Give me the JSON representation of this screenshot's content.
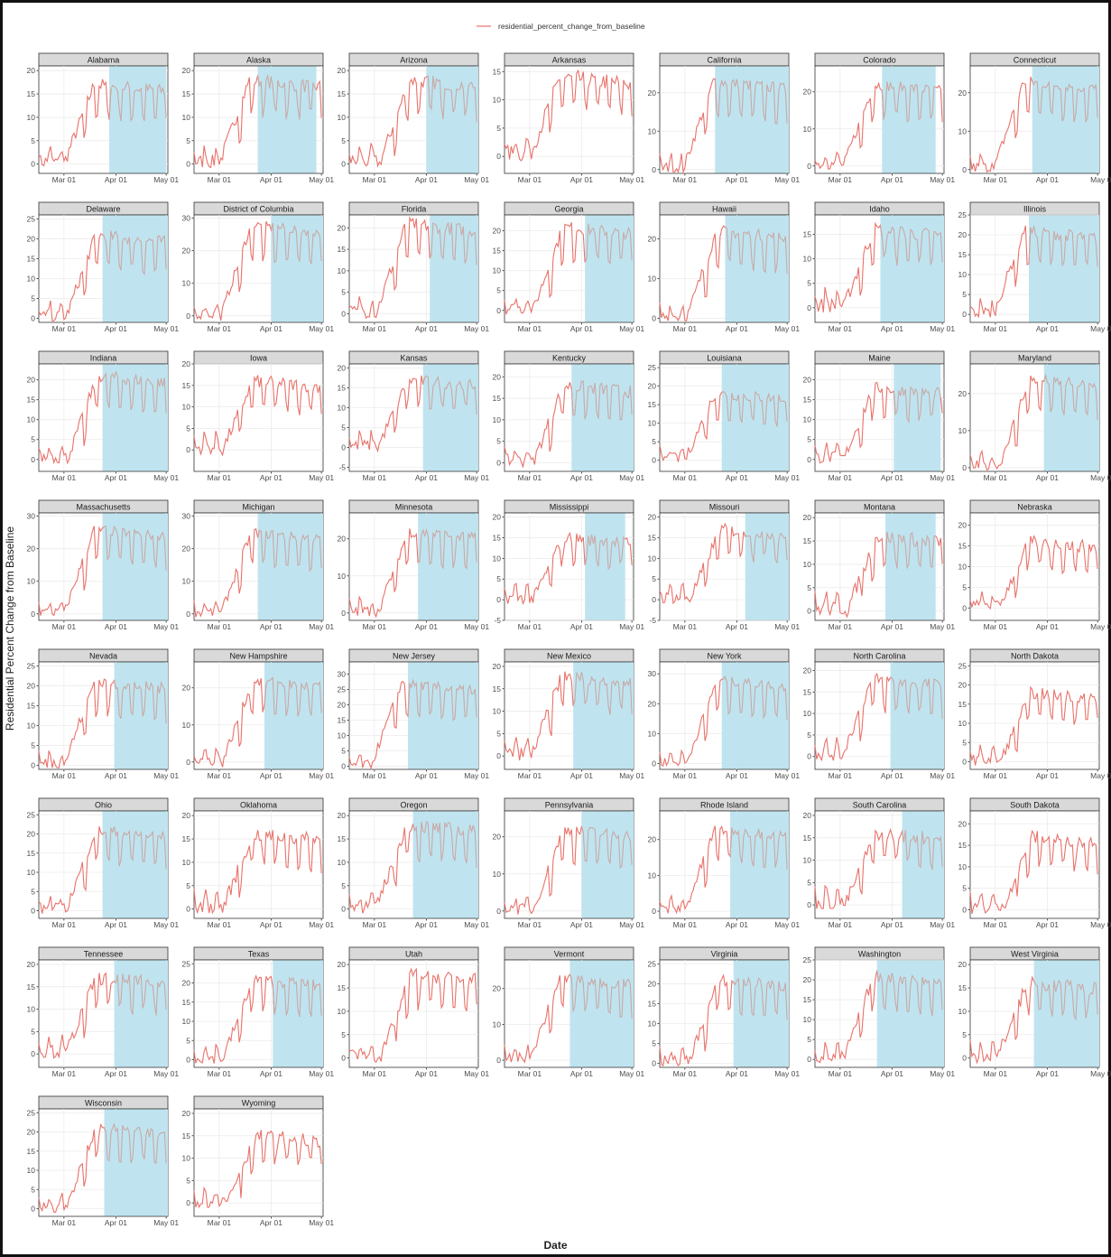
{
  "chart_data": {
    "type": "line",
    "title": "",
    "xlabel": "Date",
    "ylabel": "Residential Percent Change from Baseline",
    "legend": {
      "position": "top",
      "entries": [
        {
          "name": "residential_percent_change_from_baseline",
          "color": "#e8726a"
        }
      ]
    },
    "x_range": [
      "2020-02-15",
      "2020-05-02"
    ],
    "x_ticks": [
      "Mar 01",
      "Apr 01",
      "May 01"
    ],
    "grid": true,
    "colors": {
      "line": "#e8726a",
      "line_in_shade": "#c9a9a5",
      "shade": "#bfe4f0",
      "strip": "#d9d9d9",
      "grid": "#ebebeb",
      "axis_text": "#4d4d4d"
    },
    "series_note": "",
    "panels": [
      {
        "state": "Alabama",
        "ticks": [
          0,
          5,
          10,
          15,
          20
        ],
        "ylim": [
          -2,
          21
        ],
        "shade": [
          "2020-03-28",
          "2020-05-01"
        ],
        "onset": 16,
        "peak": 17
      },
      {
        "state": "Alaska",
        "ticks": [
          0,
          5,
          10,
          15,
          20
        ],
        "ylim": [
          -2,
          21
        ],
        "shade": [
          "2020-03-24",
          "2020-04-28"
        ],
        "onset": 15,
        "peak": 18
      },
      {
        "state": "Arizona",
        "ticks": [
          0,
          5,
          10,
          15,
          20
        ],
        "ylim": [
          -2,
          21
        ],
        "shade": [
          "2020-04-01",
          "2020-05-02"
        ],
        "onset": 17,
        "peak": 18
      },
      {
        "state": "Arkansas",
        "ticks": [
          0,
          5,
          10,
          15
        ],
        "ylim": [
          -3,
          16
        ],
        "shade": null,
        "onset": 16,
        "peak": 14
      },
      {
        "state": "California",
        "ticks": [
          0,
          10,
          20
        ],
        "ylim": [
          -1,
          27
        ],
        "shade": [
          "2020-03-19",
          "2020-05-02"
        ],
        "onset": 14,
        "peak": 23
      },
      {
        "state": "Colorado",
        "ticks": [
          0,
          10,
          20
        ],
        "ylim": [
          -2,
          27
        ],
        "shade": [
          "2020-03-26",
          "2020-04-27"
        ],
        "onset": 16,
        "peak": 22
      },
      {
        "state": "Connecticut",
        "ticks": [
          0,
          10,
          20
        ],
        "ylim": [
          -1,
          27
        ],
        "shade": [
          "2020-03-23",
          "2020-05-02"
        ],
        "onset": 15,
        "peak": 23
      },
      {
        "state": "Delaware",
        "ticks": [
          0,
          5,
          10,
          15,
          20,
          25
        ],
        "ylim": [
          -1,
          26
        ],
        "shade": [
          "2020-03-24",
          "2020-05-02"
        ],
        "onset": 16,
        "peak": 21
      },
      {
        "state": "District of Columbia",
        "ticks": [
          0,
          10,
          20,
          30
        ],
        "ylim": [
          -2,
          31
        ],
        "shade": [
          "2020-04-01",
          "2020-05-02"
        ],
        "onset": 15,
        "peak": 28
      },
      {
        "state": "Florida",
        "ticks": [
          0,
          5,
          10,
          15,
          20
        ],
        "ylim": [
          -2,
          23
        ],
        "shade": [
          "2020-04-03",
          "2020-05-02"
        ],
        "onset": 17,
        "peak": 21
      },
      {
        "state": "Georgia",
        "ticks": [
          0,
          5,
          10,
          15,
          20
        ],
        "ylim": [
          -3,
          24
        ],
        "shade": [
          "2020-04-03",
          "2020-05-02"
        ],
        "onset": 17,
        "peak": 21
      },
      {
        "state": "Hawaii",
        "ticks": [
          0,
          10,
          20
        ],
        "ylim": [
          -1,
          26
        ],
        "shade": [
          "2020-03-25",
          "2020-05-02"
        ],
        "onset": 15,
        "peak": 22
      },
      {
        "state": "Idaho",
        "ticks": [
          0,
          5,
          10,
          15
        ],
        "ylim": [
          -3,
          19
        ],
        "shade": [
          "2020-03-25",
          "2020-05-02"
        ],
        "onset": 18,
        "peak": 16
      },
      {
        "state": "Illinois",
        "ticks": [
          0,
          5,
          10,
          15,
          20,
          25
        ],
        "ylim": [
          -2,
          25
        ],
        "shade": [
          "2020-03-21",
          "2020-05-02"
        ],
        "onset": 14,
        "peak": 21
      },
      {
        "state": "Indiana",
        "ticks": [
          0,
          5,
          10,
          15,
          20
        ],
        "ylim": [
          -3,
          24
        ],
        "shade": [
          "2020-03-24",
          "2020-05-02"
        ],
        "onset": 16,
        "peak": 21
      },
      {
        "state": "Iowa",
        "ticks": [
          0,
          5,
          10,
          15,
          20
        ],
        "ylim": [
          -5,
          20
        ],
        "shade": null,
        "onset": 18,
        "peak": 16
      },
      {
        "state": "Kansas",
        "ticks": [
          -5,
          0,
          5,
          10,
          15,
          20
        ],
        "ylim": [
          -6,
          21
        ],
        "shade": [
          "2020-03-30",
          "2020-05-02"
        ],
        "onset": 17,
        "peak": 17
      },
      {
        "state": "Kentucky",
        "ticks": [
          0,
          5,
          10,
          15,
          20
        ],
        "ylim": [
          -2,
          23
        ],
        "shade": [
          "2020-03-26",
          "2020-05-02"
        ],
        "onset": 16,
        "peak": 18
      },
      {
        "state": "Louisiana",
        "ticks": [
          0,
          5,
          10,
          15,
          20,
          25
        ],
        "ylim": [
          -3,
          26
        ],
        "shade": [
          "2020-03-23",
          "2020-05-02"
        ],
        "onset": 16,
        "peak": 18
      },
      {
        "state": "Maine",
        "ticks": [
          0,
          5,
          10,
          15,
          20
        ],
        "ylim": [
          -3,
          24
        ],
        "shade": [
          "2020-04-02",
          "2020-04-30"
        ],
        "onset": 17,
        "peak": 18
      },
      {
        "state": "Maryland",
        "ticks": [
          0,
          10,
          20
        ],
        "ylim": [
          -1,
          28
        ],
        "shade": [
          "2020-03-30",
          "2020-05-02"
        ],
        "onset": 16,
        "peak": 24
      },
      {
        "state": "Massachusetts",
        "ticks": [
          0,
          10,
          20,
          30
        ],
        "ylim": [
          -2,
          31
        ],
        "shade": [
          "2020-03-24",
          "2020-05-02"
        ],
        "onset": 16,
        "peak": 26
      },
      {
        "state": "Michigan",
        "ticks": [
          0,
          10,
          20,
          30
        ],
        "ylim": [
          -2,
          31
        ],
        "shade": [
          "2020-03-24",
          "2020-05-02"
        ],
        "onset": 16,
        "peak": 25
      },
      {
        "state": "Minnesota",
        "ticks": [
          0,
          10,
          20
        ],
        "ylim": [
          -2,
          27
        ],
        "shade": [
          "2020-03-27",
          "2020-05-02"
        ],
        "onset": 16,
        "peak": 22
      },
      {
        "state": "Mississippi",
        "ticks": [
          -5,
          0,
          5,
          10,
          15,
          20
        ],
        "ylim": [
          -5,
          21
        ],
        "shade": [
          "2020-04-03",
          "2020-04-27"
        ],
        "onset": 18,
        "peak": 15
      },
      {
        "state": "Missouri",
        "ticks": [
          -5,
          0,
          5,
          10,
          15,
          20
        ],
        "ylim": [
          -5,
          21
        ],
        "shade": [
          "2020-04-06",
          "2020-05-02"
        ],
        "onset": 18,
        "peak": 17
      },
      {
        "state": "Montana",
        "ticks": [
          0,
          5,
          10,
          15,
          20
        ],
        "ylim": [
          -2,
          21
        ],
        "shade": [
          "2020-03-28",
          "2020-04-27"
        ],
        "onset": 18,
        "peak": 16
      },
      {
        "state": "Nebraska",
        "ticks": [
          0,
          5,
          10,
          15,
          20
        ],
        "ylim": [
          -3,
          23
        ],
        "shade": null,
        "onset": 18,
        "peak": 16
      },
      {
        "state": "Nevada",
        "ticks": [
          0,
          5,
          10,
          15,
          20,
          25
        ],
        "ylim": [
          -1,
          26
        ],
        "shade": [
          "2020-03-31",
          "2020-05-02"
        ],
        "onset": 15,
        "peak": 21
      },
      {
        "state": "New Hampshire",
        "ticks": [
          0,
          10,
          20
        ],
        "ylim": [
          -2,
          27
        ],
        "shade": [
          "2020-03-28",
          "2020-05-02"
        ],
        "onset": 16,
        "peak": 22
      },
      {
        "state": "New Jersey",
        "ticks": [
          0,
          5,
          10,
          15,
          20,
          25,
          30
        ],
        "ylim": [
          -1,
          34
        ],
        "shade": [
          "2020-03-21",
          "2020-05-02"
        ],
        "onset": 14,
        "peak": 27
      },
      {
        "state": "New Mexico",
        "ticks": [
          0,
          5,
          10,
          15,
          20
        ],
        "ylim": [
          -3,
          21
        ],
        "shade": [
          "2020-03-27",
          "2020-05-02"
        ],
        "onset": 16,
        "peak": 18
      },
      {
        "state": "New York",
        "ticks": [
          0,
          10,
          20,
          30
        ],
        "ylim": [
          -2,
          34
        ],
        "shade": [
          "2020-03-23",
          "2020-05-02"
        ],
        "onset": 15,
        "peak": 28
      },
      {
        "state": "North Carolina",
        "ticks": [
          0,
          5,
          10,
          15,
          20
        ],
        "ylim": [
          -3,
          22
        ],
        "shade": [
          "2020-03-31",
          "2020-05-02"
        ],
        "onset": 17,
        "peak": 18
      },
      {
        "state": "North Dakota",
        "ticks": [
          0,
          5,
          10,
          15,
          20,
          25
        ],
        "ylim": [
          -2,
          26
        ],
        "shade": null,
        "onset": 18,
        "peak": 18
      },
      {
        "state": "Ohio",
        "ticks": [
          0,
          5,
          10,
          15,
          20,
          25
        ],
        "ylim": [
          -2,
          26
        ],
        "shade": [
          "2020-03-24",
          "2020-05-02"
        ],
        "onset": 15,
        "peak": 21
      },
      {
        "state": "Oklahoma",
        "ticks": [
          0,
          5,
          10,
          15,
          20
        ],
        "ylim": [
          -2,
          21
        ],
        "shade": null,
        "onset": 18,
        "peak": 16
      },
      {
        "state": "Oregon",
        "ticks": [
          0,
          5,
          10,
          15,
          20
        ],
        "ylim": [
          -2,
          21
        ],
        "shade": [
          "2020-03-24",
          "2020-05-02"
        ],
        "onset": 16,
        "peak": 18
      },
      {
        "state": "Pennsylvania",
        "ticks": [
          0,
          10,
          20
        ],
        "ylim": [
          -2,
          27
        ],
        "shade": [
          "2020-04-01",
          "2020-05-02"
        ],
        "onset": 16,
        "peak": 22
      },
      {
        "state": "Rhode Island",
        "ticks": [
          0,
          10,
          20
        ],
        "ylim": [
          -2,
          28
        ],
        "shade": [
          "2020-03-28",
          "2020-05-02"
        ],
        "onset": 16,
        "peak": 23
      },
      {
        "state": "South Carolina",
        "ticks": [
          0,
          5,
          10,
          15,
          20
        ],
        "ylim": [
          -3,
          21
        ],
        "shade": [
          "2020-04-07",
          "2020-05-02"
        ],
        "onset": 18,
        "peak": 16
      },
      {
        "state": "South Dakota",
        "ticks": [
          0,
          5,
          10,
          15,
          20
        ],
        "ylim": [
          -2,
          23
        ],
        "shade": null,
        "onset": 18,
        "peak": 17
      },
      {
        "state": "Tennessee",
        "ticks": [
          0,
          5,
          10,
          15,
          20
        ],
        "ylim": [
          -3,
          21
        ],
        "shade": [
          "2020-03-31",
          "2020-05-02"
        ],
        "onset": 17,
        "peak": 17
      },
      {
        "state": "Texas",
        "ticks": [
          0,
          5,
          10,
          15,
          20,
          25
        ],
        "ylim": [
          -2,
          26
        ],
        "shade": [
          "2020-04-02",
          "2020-05-02"
        ],
        "onset": 17,
        "peak": 21
      },
      {
        "state": "Utah",
        "ticks": [
          0,
          5,
          10,
          15,
          20
        ],
        "ylim": [
          -2,
          21
        ],
        "shade": null,
        "onset": 18,
        "peak": 18
      },
      {
        "state": "Vermont",
        "ticks": [
          0,
          10,
          20
        ],
        "ylim": [
          -2,
          28
        ],
        "shade": [
          "2020-03-25",
          "2020-05-02"
        ],
        "onset": 16,
        "peak": 23
      },
      {
        "state": "Virginia",
        "ticks": [
          0,
          5,
          10,
          15,
          20,
          25
        ],
        "ylim": [
          -1,
          26
        ],
        "shade": [
          "2020-03-30",
          "2020-05-02"
        ],
        "onset": 17,
        "peak": 21
      },
      {
        "state": "Washington",
        "ticks": [
          0,
          5,
          10,
          15,
          20,
          25
        ],
        "ylim": [
          -2,
          25
        ],
        "shade": [
          "2020-03-23",
          "2020-05-02"
        ],
        "onset": 16,
        "peak": 21
      },
      {
        "state": "West Virginia",
        "ticks": [
          0,
          5,
          10,
          15,
          20
        ],
        "ylim": [
          -2,
          21
        ],
        "shade": [
          "2020-03-24",
          "2020-05-02"
        ],
        "onset": 17,
        "peak": 16
      },
      {
        "state": "Wisconsin",
        "ticks": [
          0,
          5,
          10,
          15,
          20,
          25
        ],
        "ylim": [
          -2,
          26
        ],
        "shade": [
          "2020-03-25",
          "2020-05-02"
        ],
        "onset": 16,
        "peak": 21
      },
      {
        "state": "Wyoming",
        "ticks": [
          0,
          5,
          10,
          15,
          20
        ],
        "ylim": [
          -3,
          21
        ],
        "shade": null,
        "onset": 18,
        "peak": 15
      }
    ]
  }
}
